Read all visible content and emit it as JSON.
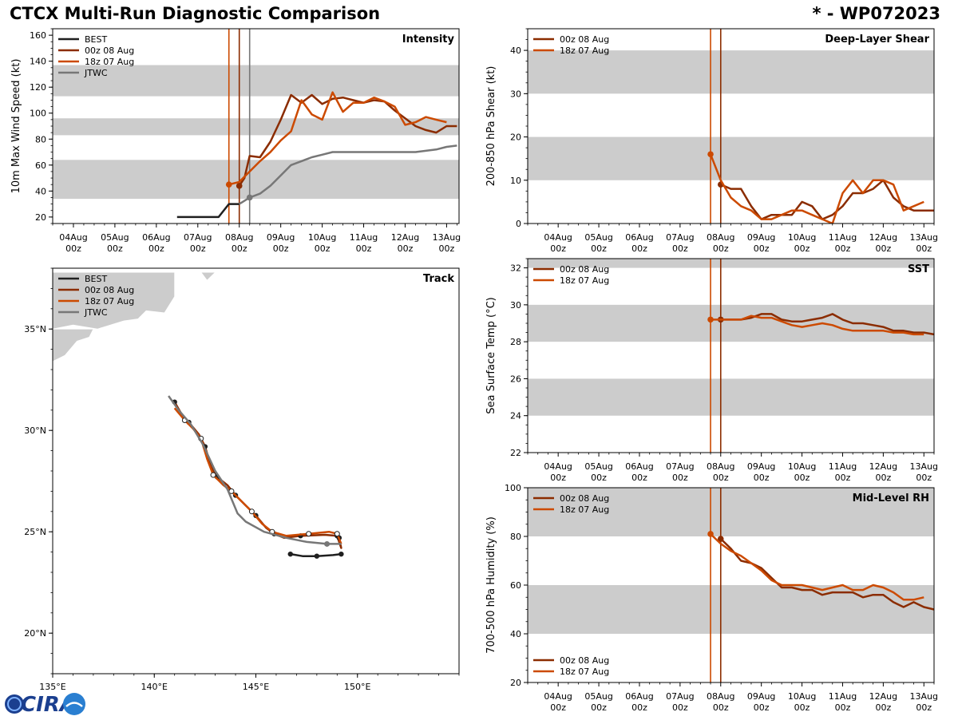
{
  "header": {
    "title": "CTCX Multi-Run Diagnostic Comparison",
    "storm_id": "* - WP072023"
  },
  "colors": {
    "best": "#1f1f1f",
    "run_00z": "#8b2c00",
    "run_18z": "#cc4a00",
    "jtwc": "#777777",
    "band": "#cccccc",
    "land": "#cccccc"
  },
  "logo": {
    "text": "CIRA"
  },
  "chart_data": [
    {
      "id": "intensity",
      "type": "line",
      "title": "Intensity",
      "ylabel": "10m Max Wind Speed (kt)",
      "ylim": [
        15,
        165
      ],
      "yticks": [
        20,
        40,
        60,
        80,
        100,
        120,
        140,
        160
      ],
      "xlim": [
        -0.5,
        9.3
      ],
      "x_ticks": [
        0,
        1,
        2,
        3,
        4,
        5,
        6,
        7,
        8,
        9
      ],
      "x_tick_labels": [
        [
          "04Aug",
          "00z"
        ],
        [
          "05Aug",
          "00z"
        ],
        [
          "06Aug",
          "00z"
        ],
        [
          "07Aug",
          "00z"
        ],
        [
          "08Aug",
          "00z"
        ],
        [
          "09Aug",
          "00z"
        ],
        [
          "10Aug",
          "00z"
        ],
        [
          "11Aug",
          "00z"
        ],
        [
          "12Aug",
          "00z"
        ],
        [
          "13Aug",
          "00z"
        ]
      ],
      "bands": [
        [
          34,
          64
        ],
        [
          83,
          96
        ],
        [
          113,
          137
        ]
      ],
      "vlines": [
        {
          "x": 3.75,
          "series": "run_18z"
        },
        {
          "x": 4.0,
          "series": "run_00z"
        },
        {
          "x": 4.25,
          "series": "jtwc"
        }
      ],
      "legend": [
        "BEST",
        "00z 08 Aug",
        "18z 07 Aug",
        "JTWC"
      ],
      "series": [
        {
          "name": "BEST",
          "key": "best",
          "x": [
            2.5,
            2.75,
            3.0,
            3.25,
            3.5,
            3.75,
            4.0
          ],
          "y": [
            20,
            20,
            20,
            20,
            20,
            30,
            30
          ]
        },
        {
          "name": "00z 08 Aug",
          "key": "run_00z",
          "x": [
            4.0,
            4.125,
            4.25,
            4.5,
            4.75,
            5.0,
            5.25,
            5.5,
            5.75,
            6.0,
            6.25,
            6.5,
            6.75,
            7.0,
            7.25,
            7.5,
            7.75,
            8.0,
            8.25,
            8.5,
            8.75,
            9.0,
            9.25
          ],
          "y": [
            44,
            50,
            67,
            66,
            78,
            95,
            114,
            108,
            114,
            107,
            111,
            112,
            110,
            108,
            110,
            109,
            102,
            96,
            90,
            87,
            85,
            90,
            90
          ],
          "marker": [
            4.0,
            44
          ]
        },
        {
          "name": "18z 07 Aug",
          "key": "run_18z",
          "x": [
            3.75,
            4.0,
            4.25,
            4.5,
            4.75,
            5.0,
            5.25,
            5.5,
            5.75,
            6.0,
            6.25,
            6.5,
            6.75,
            7.0,
            7.25,
            7.5,
            7.75,
            8.0,
            8.25,
            8.5,
            8.75,
            9.0
          ],
          "y": [
            45,
            47,
            55,
            63,
            70,
            79,
            86,
            110,
            99,
            95,
            116,
            101,
            108,
            108,
            112,
            109,
            105,
            91,
            93,
            97,
            95,
            93
          ],
          "marker": [
            3.75,
            45
          ]
        },
        {
          "name": "JTWC",
          "key": "jtwc",
          "x": [
            4.0,
            4.25,
            4.5,
            4.75,
            5.0,
            5.25,
            5.5,
            5.75,
            6.0,
            6.25,
            6.5,
            6.75,
            7.0,
            7.25,
            7.5,
            7.75,
            8.0,
            8.25,
            8.5,
            8.75,
            9.0,
            9.25
          ],
          "y": [
            30,
            35,
            38,
            44,
            52,
            60,
            63,
            66,
            68,
            70,
            70,
            70,
            70,
            70,
            70,
            70,
            70,
            70,
            71,
            72,
            74,
            75
          ],
          "marker": [
            4.25,
            35
          ]
        }
      ]
    },
    {
      "id": "shear",
      "type": "line",
      "title": "Deep-Layer Shear",
      "ylabel": "200-850 hPa Shear (kt)",
      "ylim": [
        0,
        45
      ],
      "yticks": [
        0,
        10,
        20,
        30,
        40
      ],
      "xlim": [
        -0.75,
        9.25
      ],
      "x_ticks": [
        0,
        1,
        2,
        3,
        4,
        5,
        6,
        7,
        8,
        9
      ],
      "x_tick_labels": [
        [
          "04Aug",
          "00z"
        ],
        [
          "05Aug",
          "00z"
        ],
        [
          "06Aug",
          "00z"
        ],
        [
          "07Aug",
          "00z"
        ],
        [
          "08Aug",
          "00z"
        ],
        [
          "09Aug",
          "00z"
        ],
        [
          "10Aug",
          "00z"
        ],
        [
          "11Aug",
          "00z"
        ],
        [
          "12Aug",
          "00z"
        ],
        [
          "13Aug",
          "00z"
        ]
      ],
      "bands": [
        [
          10,
          20
        ],
        [
          30,
          40
        ]
      ],
      "vlines": [
        {
          "x": 3.75,
          "series": "run_18z"
        },
        {
          "x": 4.0,
          "series": "run_00z"
        }
      ],
      "legend": [
        "00z 08 Aug",
        "18z 07 Aug"
      ],
      "series": [
        {
          "name": "00z 08 Aug",
          "key": "run_00z",
          "x": [
            4.0,
            4.25,
            4.5,
            4.75,
            5.0,
            5.25,
            5.5,
            5.75,
            6.0,
            6.25,
            6.5,
            6.75,
            7.0,
            7.25,
            7.5,
            7.75,
            8.0,
            8.25,
            8.5,
            8.75,
            9.0,
            9.25
          ],
          "y": [
            9,
            8,
            8,
            4,
            1,
            2,
            2,
            2,
            5,
            4,
            1,
            2,
            4,
            7,
            7,
            8,
            10,
            6,
            4,
            3,
            3,
            3
          ],
          "marker": [
            4.0,
            9
          ]
        },
        {
          "name": "18z 07 Aug",
          "key": "run_18z",
          "x": [
            3.75,
            4.0,
            4.25,
            4.5,
            4.75,
            5.0,
            5.25,
            5.5,
            5.75,
            6.0,
            6.25,
            6.5,
            6.75,
            7.0,
            7.25,
            7.5,
            7.75,
            8.0,
            8.25,
            8.5,
            8.75,
            9.0
          ],
          "y": [
            16,
            10,
            6,
            4,
            3,
            1,
            1,
            2,
            3,
            3,
            2,
            1,
            0,
            7,
            10,
            7,
            10,
            10,
            9,
            3,
            4,
            5
          ],
          "marker": [
            3.75,
            16
          ]
        }
      ]
    },
    {
      "id": "track",
      "type": "line",
      "title": "Track",
      "xlim": [
        135,
        155
      ],
      "ylim": [
        18,
        38
      ],
      "x_ticks": [
        135,
        140,
        145,
        150
      ],
      "x_tick_labels": [
        "135°E",
        "140°E",
        "145°E",
        "150°E"
      ],
      "y_ticks": [
        20,
        25,
        30,
        35
      ],
      "y_tick_labels": [
        "20°N",
        "25°N",
        "30°N",
        "35°N"
      ],
      "legend": [
        "BEST",
        "00z 08 Aug",
        "18z 07 Aug",
        "JTWC"
      ],
      "land": [
        [
          [
            135.0,
            35.0
          ],
          [
            136.0,
            35.2
          ],
          [
            137.2,
            35.0
          ],
          [
            138.5,
            35.4
          ],
          [
            139.2,
            35.5
          ],
          [
            139.6,
            35.9
          ],
          [
            140.5,
            35.8
          ],
          [
            141.0,
            36.6
          ],
          [
            141.0,
            37.8
          ],
          [
            135.0,
            37.8
          ]
        ],
        [
          [
            135.0,
            33.4
          ],
          [
            135.6,
            33.7
          ],
          [
            136.2,
            34.4
          ],
          [
            136.8,
            34.6
          ],
          [
            137.0,
            35.0
          ],
          [
            135.0,
            35.0
          ]
        ],
        [
          [
            142.3,
            37.8
          ],
          [
            142.6,
            37.4
          ],
          [
            143.0,
            37.8
          ]
        ]
      ],
      "series": [
        {
          "name": "BEST",
          "key": "best",
          "lon": [
            149.2,
            148.8,
            148.0,
            147.3,
            146.7
          ],
          "lat": [
            23.9,
            23.85,
            23.8,
            23.8,
            23.9
          ]
        },
        {
          "name": "00z 08 Aug",
          "key": "run_00z",
          "lon": [
            149.1,
            149.2,
            149.0,
            148.4,
            147.2,
            146.4,
            145.9,
            145.5,
            145.0,
            144.5,
            144.0,
            143.6,
            143.1,
            142.8,
            142.5,
            142.2,
            141.7,
            141.4,
            141.0
          ],
          "lat": [
            24.7,
            24.2,
            24.8,
            24.85,
            24.8,
            24.7,
            24.9,
            25.2,
            25.8,
            26.3,
            26.8,
            27.3,
            27.7,
            28.2,
            29.2,
            29.8,
            30.4,
            30.7,
            31.4
          ]
        },
        {
          "name": "18z 07 Aug",
          "key": "run_18z",
          "lon": [
            149.2,
            149.0,
            148.6,
            147.6,
            146.5,
            145.8,
            145.3,
            144.8,
            144.2,
            143.8,
            143.4,
            142.9,
            142.6,
            142.3,
            141.9,
            141.5,
            141.0
          ],
          "lat": [
            24.4,
            24.9,
            25.0,
            24.9,
            24.8,
            25.0,
            25.4,
            26.0,
            26.6,
            27.0,
            27.3,
            27.8,
            28.6,
            29.6,
            30.1,
            30.5,
            31.1
          ]
        },
        {
          "name": "JTWC",
          "key": "jtwc",
          "lon": [
            149.2,
            148.5,
            147.5,
            146.5,
            145.4,
            144.5,
            144.1,
            143.6,
            143.0,
            142.4,
            141.8,
            141.2,
            140.7
          ],
          "lat": [
            24.4,
            24.4,
            24.5,
            24.7,
            25.0,
            25.5,
            25.9,
            27.1,
            28.0,
            29.3,
            30.3,
            31.0,
            31.7
          ]
        }
      ]
    },
    {
      "id": "sst",
      "type": "line",
      "title": "SST",
      "ylabel": "Sea Surface Temp (°C)",
      "ylim": [
        22,
        32.5
      ],
      "yticks": [
        22,
        24,
        26,
        28,
        30,
        32
      ],
      "xlim": [
        -0.75,
        9.25
      ],
      "x_ticks": [
        0,
        1,
        2,
        3,
        4,
        5,
        6,
        7,
        8,
        9
      ],
      "x_tick_labels": [
        [
          "04Aug",
          "00z"
        ],
        [
          "05Aug",
          "00z"
        ],
        [
          "06Aug",
          "00z"
        ],
        [
          "07Aug",
          "00z"
        ],
        [
          "08Aug",
          "00z"
        ],
        [
          "09Aug",
          "00z"
        ],
        [
          "10Aug",
          "00z"
        ],
        [
          "11Aug",
          "00z"
        ],
        [
          "12Aug",
          "00z"
        ],
        [
          "13Aug",
          "00z"
        ]
      ],
      "bands": [
        [
          24,
          26
        ],
        [
          28,
          30
        ],
        [
          32,
          34
        ]
      ],
      "vlines": [
        {
          "x": 3.75,
          "series": "run_18z"
        },
        {
          "x": 4.0,
          "series": "run_00z"
        }
      ],
      "legend": [
        "00z 08 Aug",
        "18z 07 Aug"
      ],
      "series": [
        {
          "name": "00z 08 Aug",
          "key": "run_00z",
          "x": [
            4.0,
            4.25,
            4.5,
            4.75,
            5.0,
            5.25,
            5.5,
            5.75,
            6.0,
            6.25,
            6.5,
            6.75,
            7.0,
            7.25,
            7.5,
            7.75,
            8.0,
            8.25,
            8.5,
            8.75,
            9.0,
            9.25
          ],
          "y": [
            29.2,
            29.2,
            29.2,
            29.3,
            29.5,
            29.5,
            29.2,
            29.1,
            29.1,
            29.2,
            29.3,
            29.5,
            29.2,
            29.0,
            29.0,
            28.9,
            28.8,
            28.6,
            28.6,
            28.5,
            28.5,
            28.4
          ],
          "marker": [
            4.0,
            29.2
          ]
        },
        {
          "name": "18z 07 Aug",
          "key": "run_18z",
          "x": [
            3.75,
            4.0,
            4.25,
            4.5,
            4.75,
            5.0,
            5.25,
            5.5,
            5.75,
            6.0,
            6.25,
            6.5,
            6.75,
            7.0,
            7.25,
            7.5,
            7.75,
            8.0,
            8.25,
            8.5,
            8.75,
            9.0
          ],
          "y": [
            29.2,
            29.2,
            29.2,
            29.2,
            29.4,
            29.3,
            29.3,
            29.1,
            28.9,
            28.8,
            28.9,
            29.0,
            28.9,
            28.7,
            28.6,
            28.6,
            28.6,
            28.6,
            28.5,
            28.5,
            28.4,
            28.4
          ],
          "marker": [
            3.75,
            29.2
          ]
        }
      ]
    },
    {
      "id": "rh",
      "type": "line",
      "title": "Mid-Level RH",
      "ylabel": "700-500 hPa Humidity (%)",
      "ylim": [
        20,
        100
      ],
      "yticks": [
        20,
        40,
        60,
        80,
        100
      ],
      "xlim": [
        -0.75,
        9.25
      ],
      "x_ticks": [
        0,
        1,
        2,
        3,
        4,
        5,
        6,
        7,
        8,
        9
      ],
      "x_tick_labels": [
        [
          "04Aug",
          "00z"
        ],
        [
          "05Aug",
          "00z"
        ],
        [
          "06Aug",
          "00z"
        ],
        [
          "07Aug",
          "00z"
        ],
        [
          "08Aug",
          "00z"
        ],
        [
          "09Aug",
          "00z"
        ],
        [
          "10Aug",
          "00z"
        ],
        [
          "11Aug",
          "00z"
        ],
        [
          "12Aug",
          "00z"
        ],
        [
          "13Aug",
          "00z"
        ]
      ],
      "bands": [
        [
          40,
          60
        ],
        [
          80,
          100
        ]
      ],
      "vlines": [
        {
          "x": 3.75,
          "series": "run_18z"
        },
        {
          "x": 4.0,
          "series": "run_00z"
        }
      ],
      "legend": [
        "00z 08 Aug",
        "18z 07 Aug"
      ],
      "series": [
        {
          "name": "00z 08 Aug",
          "key": "run_00z",
          "x": [
            4.0,
            4.25,
            4.5,
            4.75,
            5.0,
            5.25,
            5.5,
            5.75,
            6.0,
            6.25,
            6.5,
            6.75,
            7.0,
            7.25,
            7.5,
            7.75,
            8.0,
            8.25,
            8.5,
            8.75,
            9.0,
            9.25
          ],
          "y": [
            79,
            75,
            70,
            69,
            67,
            63,
            59,
            59,
            58,
            58,
            56,
            57,
            57,
            57,
            55,
            56,
            56,
            53,
            51,
            53,
            51,
            50
          ],
          "marker": [
            4.0,
            79
          ]
        },
        {
          "name": "18z 07 Aug",
          "key": "run_18z",
          "x": [
            3.75,
            4.0,
            4.25,
            4.5,
            4.75,
            5.0,
            5.25,
            5.5,
            5.75,
            6.0,
            6.25,
            6.5,
            6.75,
            7.0,
            7.25,
            7.5,
            7.75,
            8.0,
            8.25,
            8.5,
            8.75,
            9.0
          ],
          "y": [
            81,
            77,
            74,
            72,
            69,
            66,
            62,
            60,
            60,
            60,
            59,
            58,
            59,
            60,
            58,
            58,
            60,
            59,
            57,
            54,
            54,
            55
          ],
          "marker": [
            3.75,
            81
          ]
        }
      ]
    }
  ]
}
